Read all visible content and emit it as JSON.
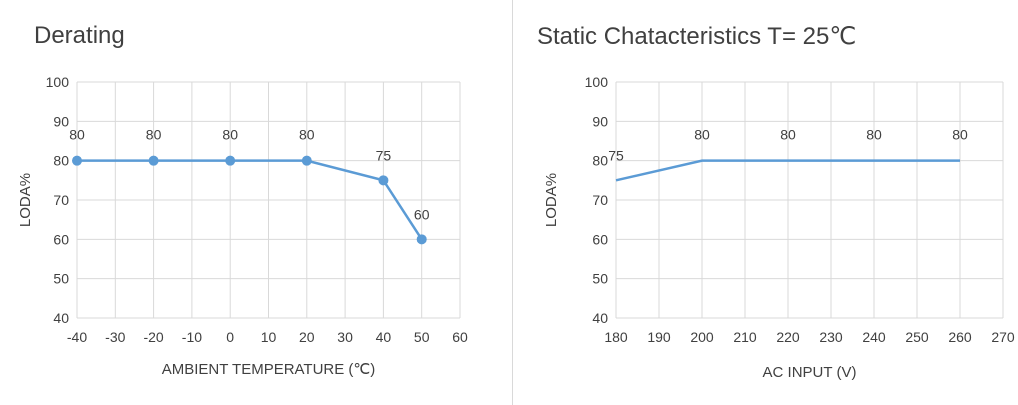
{
  "chart_data": [
    {
      "type": "line",
      "title": "Derating",
      "xlabel": "AMBIENT TEMPERATURE (℃)",
      "ylabel": "LODA%",
      "x_ticks": [
        "-40",
        "-30",
        "-20",
        "-10",
        "0",
        "10",
        "20",
        "30",
        "40",
        "50",
        "60"
      ],
      "y_ticks": [
        "40",
        "50",
        "60",
        "70",
        "80",
        "90",
        "100"
      ],
      "xlim": [
        -40,
        60
      ],
      "ylim": [
        40,
        100
      ],
      "grid": true,
      "markers": true,
      "series": [
        {
          "x": [
            -40,
            -20,
            0,
            20,
            40,
            50
          ],
          "y": [
            80,
            80,
            80,
            80,
            75,
            60
          ],
          "labels": [
            "80",
            "80",
            "80",
            "80",
            "75",
            "60"
          ]
        }
      ],
      "color": "#5b9bd5"
    },
    {
      "type": "line",
      "title": "Static Chatacteristics T= 25℃",
      "xlabel": "AC INPUT (V)",
      "ylabel": "LODA%",
      "x_ticks": [
        "180",
        "190",
        "200",
        "210",
        "220",
        "230",
        "240",
        "250",
        "260",
        "270"
      ],
      "y_ticks": [
        "40",
        "50",
        "60",
        "70",
        "80",
        "90",
        "100"
      ],
      "xlim": [
        180,
        270
      ],
      "ylim": [
        40,
        100
      ],
      "grid": true,
      "markers": false,
      "series": [
        {
          "x": [
            180,
            200,
            220,
            240,
            260
          ],
          "y": [
            75,
            80,
            80,
            80,
            80
          ],
          "labels": [
            "75",
            "80",
            "80",
            "80",
            "80"
          ]
        }
      ],
      "color": "#5b9bd5"
    }
  ]
}
